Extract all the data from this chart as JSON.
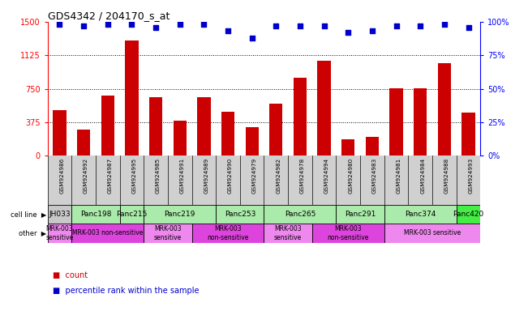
{
  "title": "GDS4342 / 204170_s_at",
  "samples": [
    "GSM924986",
    "GSM924992",
    "GSM924987",
    "GSM924995",
    "GSM924985",
    "GSM924991",
    "GSM924989",
    "GSM924990",
    "GSM924979",
    "GSM924982",
    "GSM924978",
    "GSM924994",
    "GSM924980",
    "GSM924983",
    "GSM924981",
    "GSM924984",
    "GSM924988",
    "GSM924993"
  ],
  "counts": [
    510,
    290,
    670,
    1290,
    660,
    390,
    660,
    490,
    320,
    580,
    870,
    1060,
    185,
    210,
    760,
    760,
    1040,
    480
  ],
  "percentiles": [
    98,
    97,
    98,
    98,
    96,
    98,
    98,
    93,
    88,
    97,
    97,
    97,
    92,
    93,
    97,
    97,
    98,
    96
  ],
  "cell_line_groups": [
    {
      "label": "JH033",
      "start": 0,
      "end": 0,
      "color": "#c8c8c8"
    },
    {
      "label": "Panc198",
      "start": 1,
      "end": 2,
      "color": "#aaeaaa"
    },
    {
      "label": "Panc215",
      "start": 3,
      "end": 3,
      "color": "#aaeaaa"
    },
    {
      "label": "Panc219",
      "start": 4,
      "end": 6,
      "color": "#aaeaaa"
    },
    {
      "label": "Panc253",
      "start": 7,
      "end": 8,
      "color": "#aaeaaa"
    },
    {
      "label": "Panc265",
      "start": 9,
      "end": 11,
      "color": "#aaeaaa"
    },
    {
      "label": "Panc291",
      "start": 12,
      "end": 13,
      "color": "#aaeaaa"
    },
    {
      "label": "Panc374",
      "start": 14,
      "end": 16,
      "color": "#aaeaaa"
    },
    {
      "label": "Panc420",
      "start": 17,
      "end": 17,
      "color": "#44ee44"
    }
  ],
  "other_groups": [
    {
      "text": "MRK-003\nsensitive",
      "start": 0,
      "end": 0,
      "color": "#ee88ee"
    },
    {
      "text": "MRK-003 non-sensitive",
      "start": 1,
      "end": 3,
      "color": "#dd44dd"
    },
    {
      "text": "MRK-003\nsensitive",
      "start": 4,
      "end": 5,
      "color": "#ee88ee"
    },
    {
      "text": "MRK-003\nnon-sensitive",
      "start": 6,
      "end": 8,
      "color": "#dd44dd"
    },
    {
      "text": "MRK-003\nsensitive",
      "start": 9,
      "end": 10,
      "color": "#ee88ee"
    },
    {
      "text": "MRK-003\nnon-sensitive",
      "start": 11,
      "end": 13,
      "color": "#dd44dd"
    },
    {
      "text": "MRK-003 sensitive",
      "start": 14,
      "end": 17,
      "color": "#ee88ee"
    }
  ],
  "xtick_bg": "#d0d0d0",
  "bar_color": "#cc0000",
  "dot_color": "#0000cc",
  "ylim_left": [
    0,
    1500
  ],
  "ylim_right": [
    0,
    100
  ],
  "yticks_left": [
    0,
    375,
    750,
    1125,
    1500
  ],
  "yticks_right": [
    0,
    25,
    50,
    75,
    100
  ],
  "grid_lines": [
    375,
    750,
    1125
  ],
  "bg_color": "#ffffff",
  "legend_count_color": "#cc0000",
  "legend_pct_color": "#0000cc"
}
